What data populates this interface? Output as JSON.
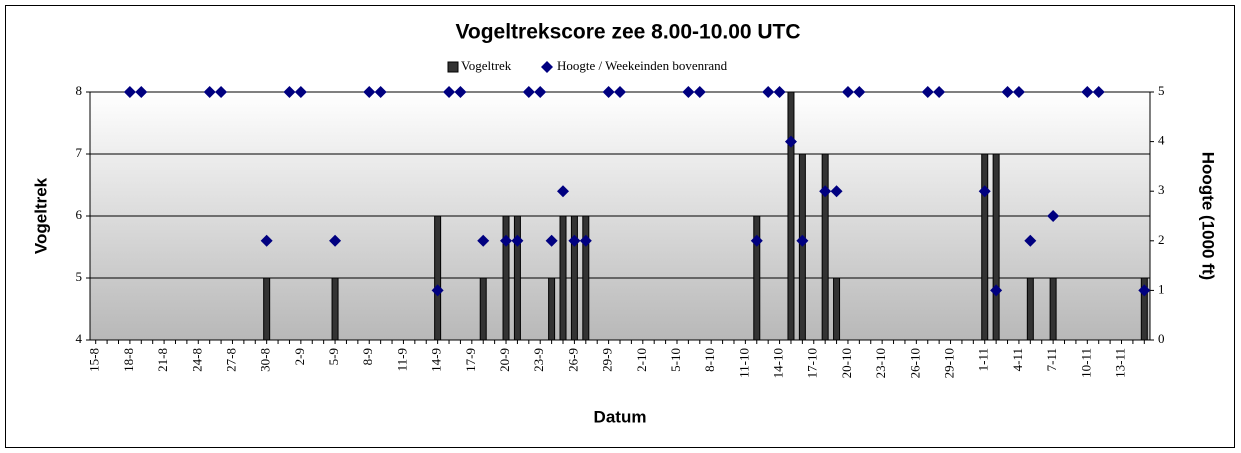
{
  "chart_data": {
    "type": "bar",
    "title": "Vogeltrekscore zee 8.00-10.00 UTC",
    "xlabel": "Datum",
    "ylabel": "Vogeltrek",
    "y2label": "Hoogte (1000 ft)",
    "categories": [
      "15-8",
      null,
      null,
      "18-8",
      null,
      null,
      "21-8",
      null,
      null,
      "24-8",
      null,
      null,
      "27-8",
      null,
      null,
      "30-8",
      null,
      null,
      "2-9",
      null,
      null,
      "5-9",
      null,
      null,
      "8-9",
      null,
      null,
      "11-9",
      null,
      null,
      "14-9",
      null,
      null,
      "17-9",
      null,
      null,
      "20-9",
      null,
      null,
      "23-9",
      null,
      null,
      "26-9",
      null,
      null,
      "29-9",
      null,
      null,
      "2-10",
      null,
      null,
      "5-10",
      null,
      null,
      "8-10",
      null,
      null,
      "11-10",
      null,
      null,
      "14-10",
      null,
      null,
      "17-10",
      null,
      null,
      "20-10",
      null,
      null,
      "23-10",
      null,
      null,
      "26-10",
      null,
      null,
      "29-10",
      null,
      null,
      "1-11",
      null,
      null,
      "4-11",
      null,
      null,
      "7-11",
      null,
      null,
      "10-11",
      null,
      null,
      "13-11",
      null,
      null
    ],
    "series": [
      {
        "name": "Vogeltrek",
        "type": "bar",
        "color": "#333333",
        "values": [
          null,
          null,
          null,
          null,
          null,
          null,
          null,
          null,
          null,
          null,
          null,
          null,
          null,
          null,
          null,
          5,
          null,
          null,
          null,
          null,
          null,
          5,
          null,
          null,
          null,
          null,
          null,
          null,
          null,
          null,
          6,
          null,
          null,
          null,
          5,
          null,
          6,
          6,
          null,
          null,
          5,
          6,
          6,
          6,
          null,
          null,
          null,
          null,
          null,
          null,
          null,
          null,
          null,
          null,
          null,
          null,
          null,
          null,
          6,
          null,
          null,
          8,
          7,
          null,
          7,
          5,
          null,
          null,
          null,
          null,
          null,
          null,
          null,
          null,
          null,
          null,
          null,
          null,
          7,
          7,
          null,
          null,
          5,
          null,
          5,
          null,
          null,
          null,
          null,
          null,
          null,
          null,
          5
        ]
      },
      {
        "name": "Hoogte / Weekeinden bovenrand",
        "type": "scatter",
        "axis": "y2",
        "marker": "diamond",
        "color": "#000080",
        "values": [
          null,
          null,
          null,
          5,
          5,
          null,
          null,
          null,
          null,
          null,
          5,
          5,
          null,
          null,
          null,
          2,
          null,
          5,
          5,
          null,
          null,
          2,
          null,
          null,
          5,
          5,
          null,
          null,
          null,
          null,
          1,
          5,
          5,
          null,
          2,
          null,
          2,
          2,
          5,
          5,
          2,
          3,
          2,
          2,
          null,
          5,
          5,
          null,
          null,
          null,
          null,
          null,
          5,
          5,
          null,
          null,
          null,
          null,
          2,
          5,
          5,
          4,
          2,
          null,
          3,
          3,
          5,
          5,
          null,
          null,
          null,
          null,
          null,
          5,
          5,
          null,
          null,
          null,
          3,
          1,
          5,
          5,
          2,
          null,
          2.5,
          null,
          null,
          5,
          5,
          null,
          null,
          null,
          1
        ]
      }
    ],
    "ylim": [
      4,
      8
    ],
    "yticks": [
      4,
      5,
      6,
      7,
      8
    ],
    "y2lim": [
      0,
      5
    ],
    "y2ticks": [
      0,
      1,
      2,
      3,
      4,
      5
    ],
    "grid": true,
    "legend": "top"
  }
}
